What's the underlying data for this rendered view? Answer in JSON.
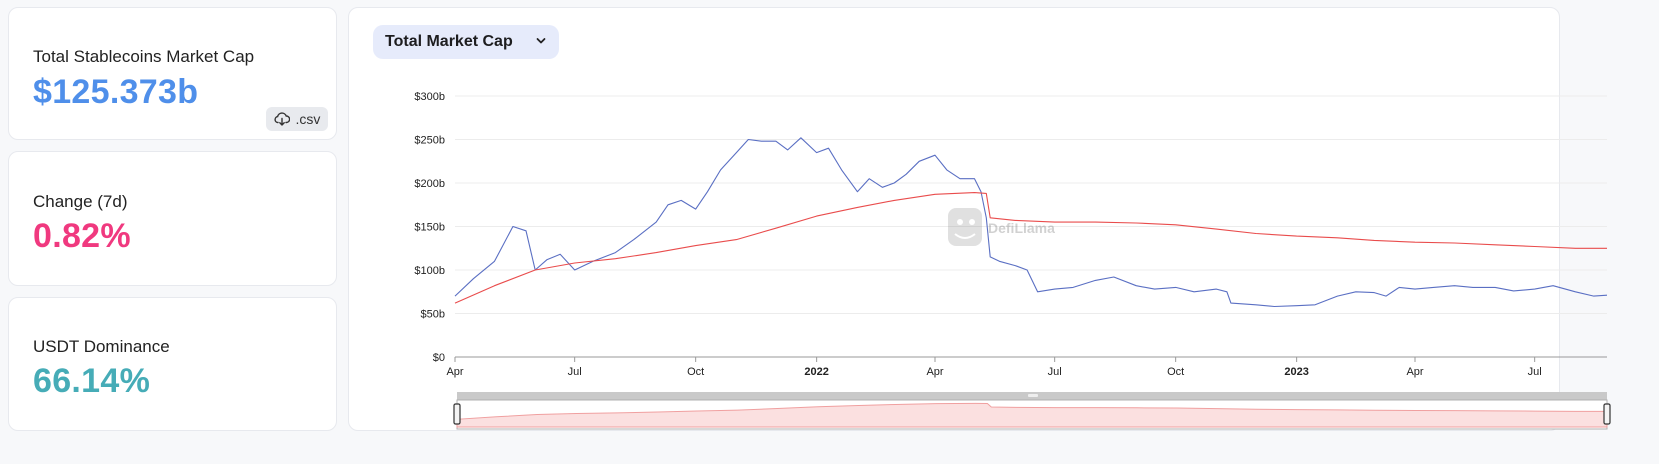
{
  "stats": {
    "market_cap_label": "Total Stablecoins Market Cap",
    "market_cap_value": "$125.373b",
    "csv_label": ".csv",
    "change_label": "Change (7d)",
    "change_value": "0.82%",
    "dominance_label": "USDT Dominance",
    "dominance_value": "66.14%"
  },
  "colors": {
    "market_cap_value": "#4f8fea",
    "change_value": "#f0397f",
    "dominance_value": "#46acb7",
    "series_blue": "#5a6fc3",
    "series_red": "#e94c4c"
  },
  "dropdown": {
    "label": "Total Market Cap",
    "icon": "chevron-down-icon"
  },
  "watermark": {
    "text": "DefiLlama"
  },
  "chart_data": {
    "type": "line",
    "title": "",
    "xlabel": "",
    "ylabel": "",
    "ylim": [
      0,
      300
    ],
    "y_unit": "billions USD",
    "y_ticks": [
      "$0",
      "$50b",
      "$100b",
      "$150b",
      "$200b",
      "$250b",
      "$300b"
    ],
    "x_ticks": [
      {
        "label": "Apr",
        "date": "2021-04",
        "bold": false
      },
      {
        "label": "Jul",
        "date": "2021-07",
        "bold": false
      },
      {
        "label": "Oct",
        "date": "2021-10",
        "bold": false
      },
      {
        "label": "2022",
        "date": "2022-01",
        "bold": true
      },
      {
        "label": "Apr",
        "date": "2022-04",
        "bold": false
      },
      {
        "label": "Jul",
        "date": "2022-07",
        "bold": false
      },
      {
        "label": "Oct",
        "date": "2022-10",
        "bold": false
      },
      {
        "label": "2023",
        "date": "2023-01",
        "bold": true
      },
      {
        "label": "Apr",
        "date": "2023-04",
        "bold": false
      },
      {
        "label": "Jul",
        "date": "2023-07",
        "bold": false
      }
    ],
    "grid": true,
    "legend": "none",
    "x_range": [
      "2021-04",
      "2023-08-25"
    ],
    "series": [
      {
        "color": "#5a6fc3",
        "points": [
          [
            "2021-04",
            70
          ],
          [
            "2021-04-15",
            90
          ],
          [
            "2021-05-01",
            110
          ],
          [
            "2021-05-15",
            150
          ],
          [
            "2021-05-25",
            145
          ],
          [
            "2021-06-01",
            100
          ],
          [
            "2021-06-10",
            112
          ],
          [
            "2021-06-20",
            118
          ],
          [
            "2021-07-01",
            100
          ],
          [
            "2021-07-15",
            110
          ],
          [
            "2021-08-01",
            120
          ],
          [
            "2021-08-15",
            135
          ],
          [
            "2021-09-01",
            155
          ],
          [
            "2021-09-10",
            175
          ],
          [
            "2021-09-20",
            180
          ],
          [
            "2021-10-01",
            170
          ],
          [
            "2021-10-10",
            190
          ],
          [
            "2021-10-20",
            215
          ],
          [
            "2021-11-01",
            235
          ],
          [
            "2021-11-10",
            250
          ],
          [
            "2021-11-20",
            248
          ],
          [
            "2021-12-01",
            248
          ],
          [
            "2021-12-10",
            238
          ],
          [
            "2021-12-20",
            252
          ],
          [
            "2022-01-01",
            235
          ],
          [
            "2022-01-10",
            240
          ],
          [
            "2022-01-20",
            215
          ],
          [
            "2022-02-01",
            190
          ],
          [
            "2022-02-10",
            205
          ],
          [
            "2022-02-20",
            195
          ],
          [
            "2022-03-01",
            200
          ],
          [
            "2022-03-10",
            210
          ],
          [
            "2022-03-20",
            225
          ],
          [
            "2022-04-01",
            232
          ],
          [
            "2022-04-10",
            215
          ],
          [
            "2022-04-20",
            205
          ],
          [
            "2022-05-01",
            205
          ],
          [
            "2022-05-06",
            190
          ],
          [
            "2022-05-10",
            160
          ],
          [
            "2022-05-13",
            115
          ],
          [
            "2022-05-20",
            110
          ],
          [
            "2022-06-01",
            105
          ],
          [
            "2022-06-10",
            100
          ],
          [
            "2022-06-18",
            75
          ],
          [
            "2022-07-01",
            78
          ],
          [
            "2022-07-15",
            80
          ],
          [
            "2022-08-01",
            88
          ],
          [
            "2022-08-15",
            92
          ],
          [
            "2022-09-01",
            82
          ],
          [
            "2022-09-15",
            78
          ],
          [
            "2022-10-01",
            80
          ],
          [
            "2022-10-15",
            75
          ],
          [
            "2022-11-01",
            78
          ],
          [
            "2022-11-09",
            75
          ],
          [
            "2022-11-12",
            62
          ],
          [
            "2022-12-01",
            60
          ],
          [
            "2022-12-15",
            58
          ],
          [
            "2023-01-01",
            59
          ],
          [
            "2023-01-15",
            60
          ],
          [
            "2023-02-01",
            70
          ],
          [
            "2023-02-15",
            75
          ],
          [
            "2023-03-01",
            74
          ],
          [
            "2023-03-10",
            70
          ],
          [
            "2023-03-20",
            80
          ],
          [
            "2023-04-01",
            78
          ],
          [
            "2023-04-15",
            80
          ],
          [
            "2023-05-01",
            82
          ],
          [
            "2023-05-15",
            80
          ],
          [
            "2023-06-01",
            80
          ],
          [
            "2023-06-15",
            76
          ],
          [
            "2023-07-01",
            78
          ],
          [
            "2023-07-15",
            82
          ],
          [
            "2023-08-01",
            75
          ],
          [
            "2023-08-15",
            70
          ],
          [
            "2023-08-25",
            71
          ]
        ]
      },
      {
        "color": "#e94c4c",
        "points": [
          [
            "2021-04",
            62
          ],
          [
            "2021-05-01",
            82
          ],
          [
            "2021-06-01",
            100
          ],
          [
            "2021-07-01",
            108
          ],
          [
            "2021-08-01",
            113
          ],
          [
            "2021-09-01",
            120
          ],
          [
            "2021-10-01",
            128
          ],
          [
            "2021-11-01",
            135
          ],
          [
            "2021-12-01",
            148
          ],
          [
            "2022-01-01",
            162
          ],
          [
            "2022-02-01",
            172
          ],
          [
            "2022-03-01",
            180
          ],
          [
            "2022-04-01",
            187
          ],
          [
            "2022-05-01",
            189
          ],
          [
            "2022-05-10",
            188
          ],
          [
            "2022-05-13",
            160
          ],
          [
            "2022-06-01",
            157
          ],
          [
            "2022-07-01",
            155
          ],
          [
            "2022-08-01",
            155
          ],
          [
            "2022-09-01",
            154
          ],
          [
            "2022-10-01",
            152
          ],
          [
            "2022-11-01",
            147
          ],
          [
            "2022-12-01",
            142
          ],
          [
            "2023-01-01",
            139
          ],
          [
            "2023-02-01",
            137
          ],
          [
            "2023-03-01",
            134
          ],
          [
            "2023-04-01",
            132
          ],
          [
            "2023-05-01",
            131
          ],
          [
            "2023-06-01",
            129
          ],
          [
            "2023-07-01",
            127
          ],
          [
            "2023-08-01",
            125
          ],
          [
            "2023-08-25",
            125
          ]
        ]
      }
    ],
    "brush": {
      "start": "2021-04",
      "end": "2023-08-25",
      "series_index": 1
    }
  }
}
